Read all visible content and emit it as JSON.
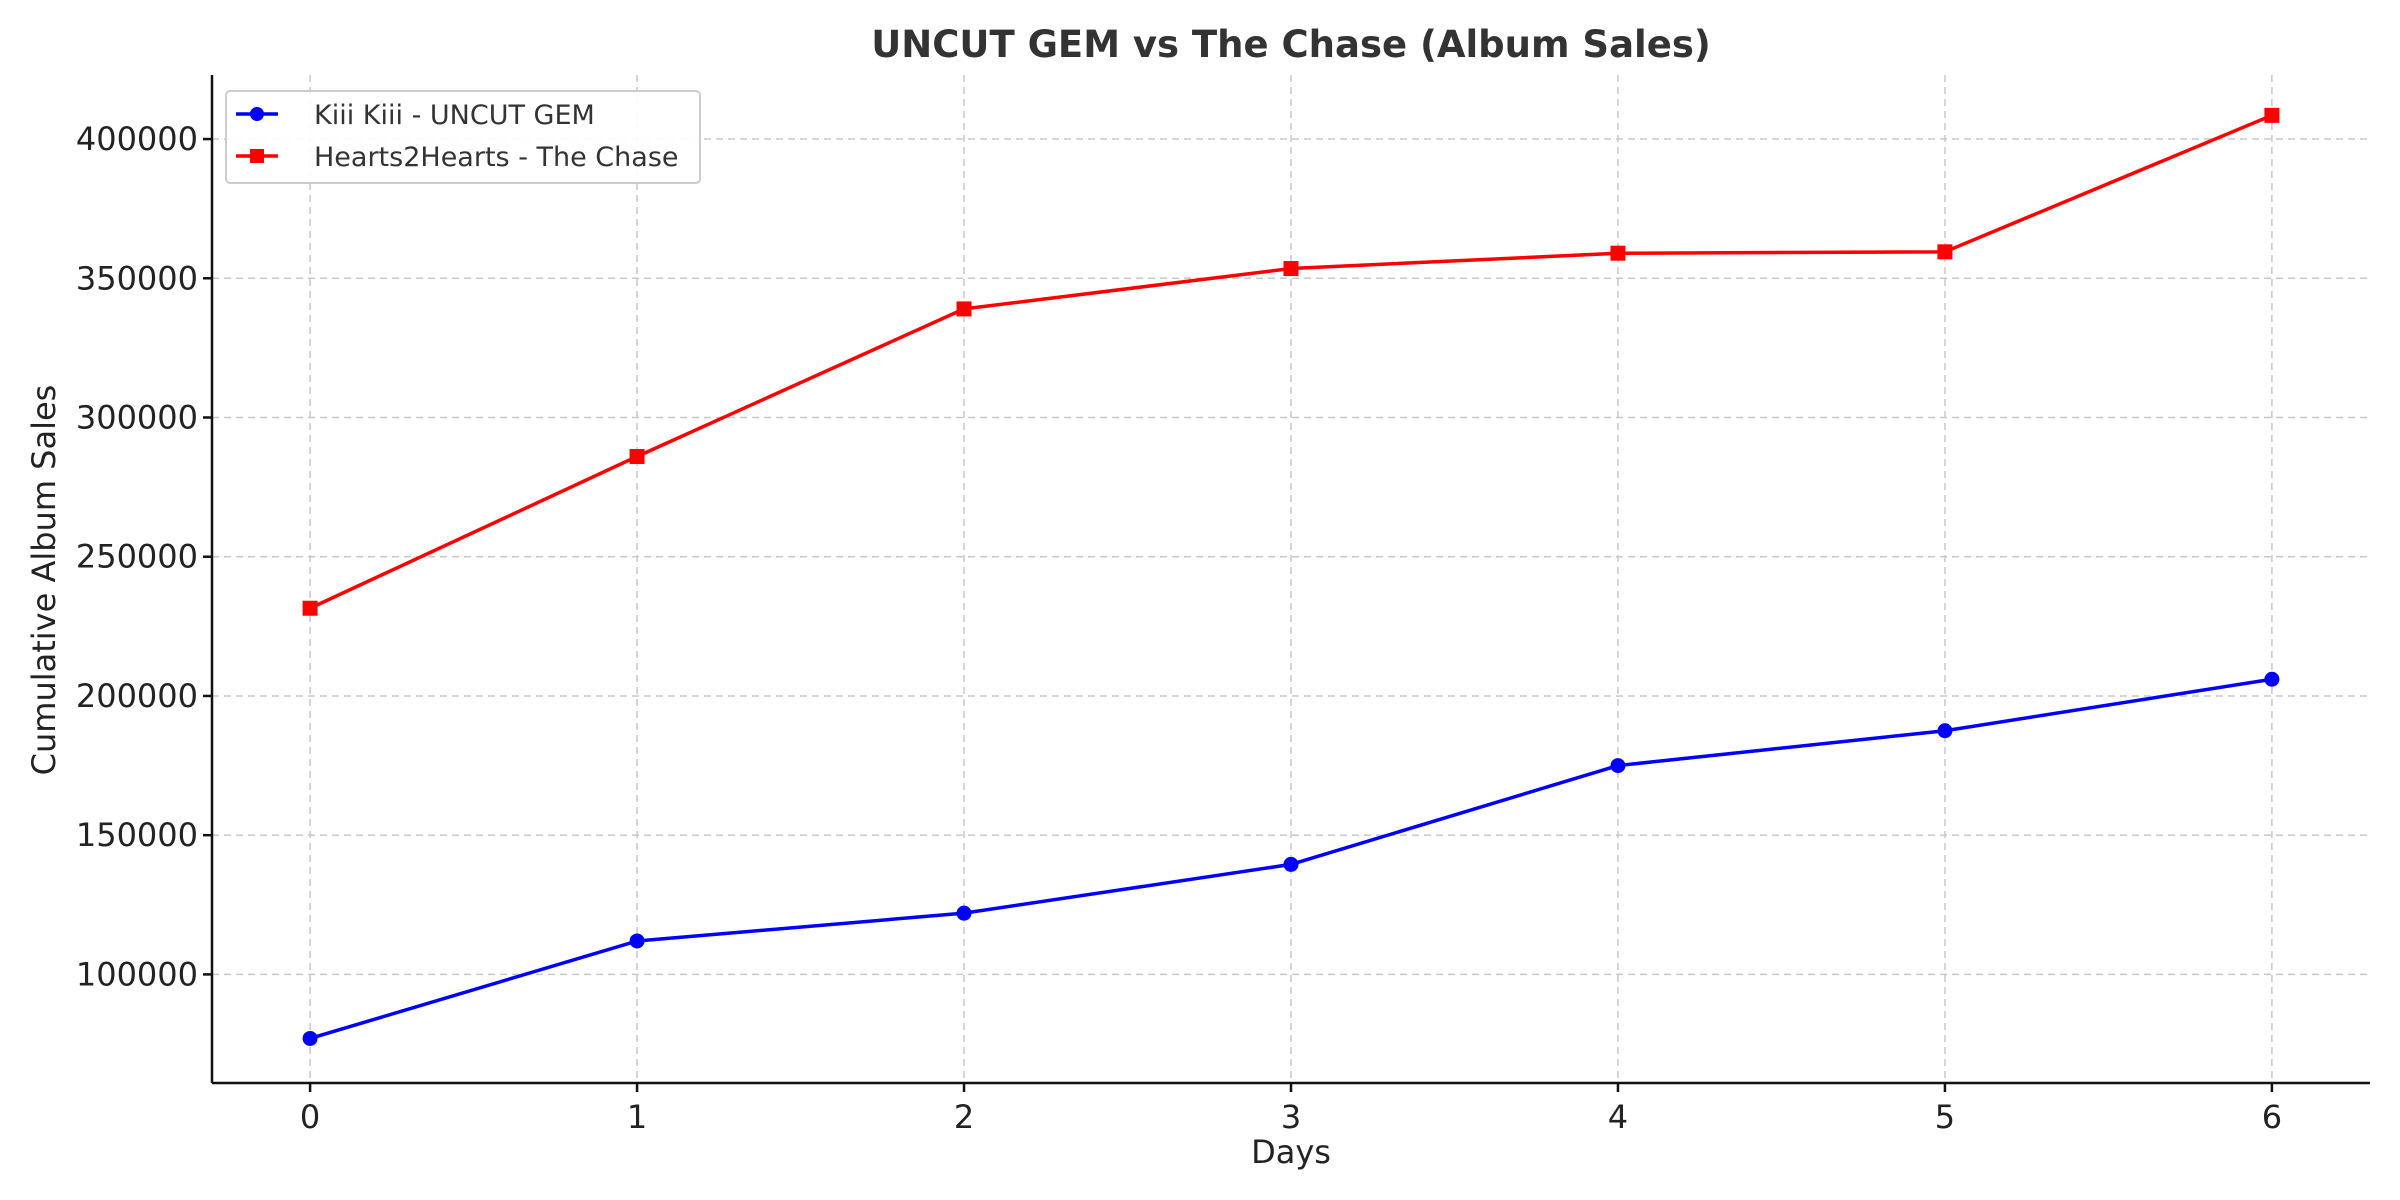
{
  "chart_data": {
    "type": "line",
    "title": "UNCUT GEM vs The Chase (Album Sales)",
    "xlabel": "Days",
    "ylabel": "Cumulative Album Sales",
    "x": [
      0,
      1,
      2,
      3,
      4,
      5,
      6
    ],
    "xlim": [
      -0.3,
      6.3
    ],
    "ylim": [
      61000,
      423000
    ],
    "yticks": [
      100000,
      150000,
      200000,
      250000,
      300000,
      350000,
      400000
    ],
    "xticks": [
      0,
      1,
      2,
      3,
      4,
      5,
      6
    ],
    "grid": true,
    "legend_position": "upper-left",
    "series": [
      {
        "name": "Kiii Kiii - UNCUT GEM",
        "color": "#0000ff",
        "marker": "circle",
        "values": [
          77000,
          112000,
          122000,
          139500,
          175000,
          187500,
          206000
        ]
      },
      {
        "name": "Hearts2Hearts - The Chase",
        "color": "#ff0000",
        "marker": "square",
        "values": [
          231500,
          286000,
          339000,
          353500,
          359000,
          359500,
          408500
        ]
      }
    ]
  }
}
